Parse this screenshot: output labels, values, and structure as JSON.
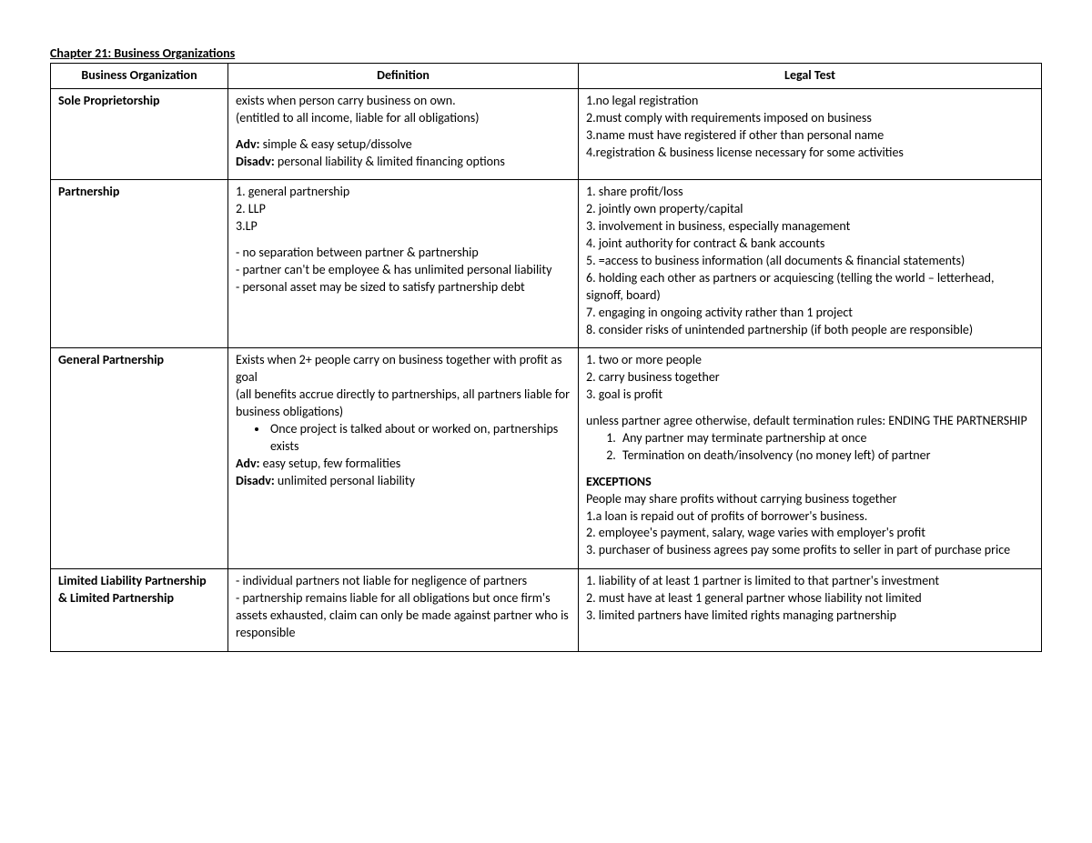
{
  "chapter_title": "Chapter 21: Business Organizations",
  "headers": {
    "col1": "Business Organization",
    "col2": "Definition",
    "col3": "Legal Test"
  },
  "r1": {
    "name": "Sole Proprietorship",
    "def_l1": "exists when person carry business on own.",
    "def_l2": "(entitled to all income, liable for all obligations)",
    "adv_label": "Adv:",
    "adv": " simple & easy setup/dissolve",
    "dis_label": "Disadv:",
    "dis": " personal liability & limited financing options",
    "lt1": "1.no legal registration",
    "lt2": "2.must comply with requirements imposed on business",
    "lt3": "3.name must have registered if other than personal name",
    "lt4": "4.registration & business license necessary for some activities"
  },
  "r2": {
    "name": "Partnership",
    "d1": "1. general partnership",
    "d2": "2. LLP",
    "d3": "3.LP",
    "d4": "- no separation between partner & partnership",
    "d5": "- partner can't be employee & has unlimited personal liability",
    "d6": "- personal asset may be sized to satisfy partnership debt",
    "lt1": "1. share profit/loss",
    "lt2": "2. jointly own property/capital",
    "lt3": "3. involvement in business, especially management",
    "lt4": "4. joint authority for contract & bank accounts",
    "lt5": "5. =access to business information (all documents & financial statements)",
    "lt6": "6. holding each other as partners or acquiescing (telling the world – letterhead, signoff, board)",
    "lt7": "7. engaging in ongoing activity rather than 1 project",
    "lt8": "8. consider risks of unintended partnership (if both people are responsible)"
  },
  "r3": {
    "name": "General Partnership",
    "d1": "Exists when 2+ people carry on business together with profit as goal",
    "d2": "(all benefits accrue directly to partnerships, all partners liable for business obligations)",
    "bul": "Once project is talked about or worked on, partnerships exists",
    "adv_label": "Adv:",
    "adv": " easy setup, few formalities",
    "dis_label": "Disadv:",
    "dis": " unlimited personal liability",
    "lt1": "1. two or more people",
    "lt2": "2. carry business together",
    "lt3": "3. goal is profit",
    "term_intro": "unless partner agree otherwise, default termination rules: ENDING THE PARTNERSHIP",
    "term1": "Any partner may terminate partnership at once",
    "term2": "Termination on death/insolvency (no money left) of partner",
    "exc_h": "EXCEPTIONS",
    "exc0": "People may share profits without carrying business together",
    "exc1": "1.a loan is repaid out of profits of borrower's business.",
    "exc2": "2. employee's payment, salary, wage varies with employer's profit",
    "exc3": "3. purchaser of business agrees pay some profits to seller in part of purchase price"
  },
  "r4": {
    "name_l1": "Limited Liability Partnership",
    "name_l2": "& Limited Partnership",
    "d1": "- individual partners not liable for negligence of partners",
    "d2": "- partnership remains liable for all obligations but once firm's assets exhausted, claim can only be made against partner who is responsible",
    "lt1": "1. liability of at least 1 partner is limited to that partner's investment",
    "lt2": "2. must have at least 1 general partner whose liability not limited",
    "lt3": "3. limited partners have limited rights managing partnership"
  }
}
